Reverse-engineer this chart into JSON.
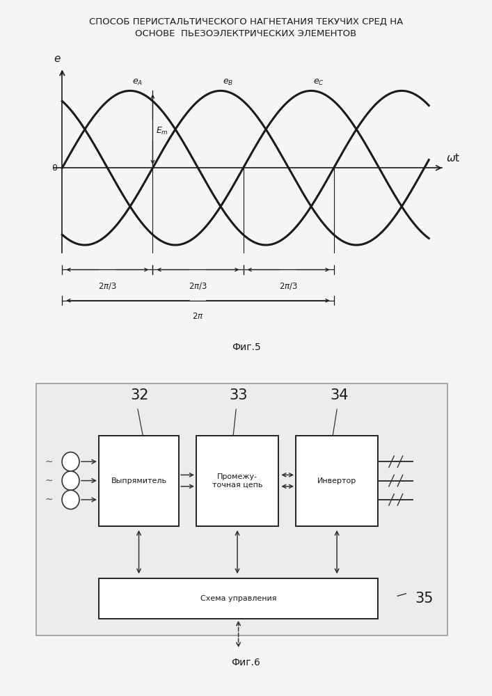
{
  "title_line1": "СПОСОБ ПЕРИСТАЛЬТИЧЕСКОГО НАГНЕТАНИЯ ТЕКУЧИХ СРЕД НА",
  "title_line2": "ОСНОВЕ  ПЬЕЗОЭЛЕКТРИЧЕСКИХ ЭЛЕМЕНТОВ",
  "fig5_caption": "Фиг.5",
  "fig6_caption": "Фиг.6",
  "bg_color": "#f5f5f5",
  "line_color": "#1a1a1a",
  "label_32": "32",
  "label_33": "33",
  "label_34": "34",
  "label_35": "35",
  "box1_text": "Выпрямитель",
  "box2_text": "Промежу-\nточная цепь",
  "box3_text": "Инвертор",
  "box4_text": "Схема управления"
}
